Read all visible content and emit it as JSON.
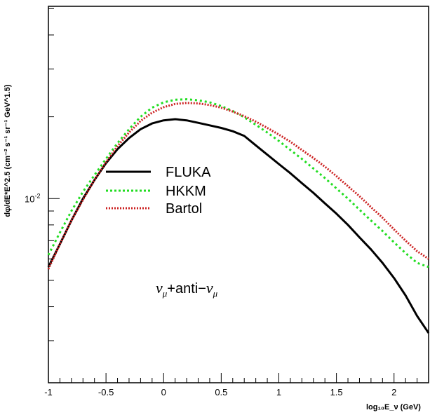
{
  "chart_data": {
    "type": "line",
    "xlabel": "log₁₀E_ν (GeV)",
    "ylabel": "dφ/dE*E^2.5 (cm⁻² s⁻¹ sr⁻¹ GeV^1.5)",
    "xlim": [
      -1,
      2.3
    ],
    "ylim": [
      0.0021,
      0.051
    ],
    "yscale": "log",
    "x_ticks": [
      -1,
      -0.5,
      0,
      0.5,
      1,
      1.5,
      2
    ],
    "x_tick_labels": [
      "-1",
      "-0.5",
      "0",
      "0.5",
      "1",
      "1.5",
      "2"
    ],
    "y_tick_labels": [
      {
        "value": 0.01,
        "label": "10",
        "exponent": "-2"
      }
    ],
    "legend_position": "center-left",
    "annotation": {
      "nu": "ν",
      "mu": "μ",
      "middle": "+anti−"
    },
    "series": [
      {
        "name": "FLUKA",
        "color": "#000000",
        "style": "solid",
        "x": [
          -1.0,
          -0.9,
          -0.8,
          -0.7,
          -0.6,
          -0.5,
          -0.4,
          -0.3,
          -0.2,
          -0.1,
          0.0,
          0.1,
          0.2,
          0.3,
          0.4,
          0.5,
          0.6,
          0.7,
          0.8,
          0.9,
          1.0,
          1.1,
          1.2,
          1.3,
          1.4,
          1.5,
          1.6,
          1.7,
          1.8,
          1.9,
          2.0,
          2.1,
          2.2,
          2.3
        ],
        "values": [
          0.0056,
          0.0068,
          0.0083,
          0.01,
          0.0117,
          0.0135,
          0.0152,
          0.0167,
          0.018,
          0.0189,
          0.0194,
          0.0196,
          0.0194,
          0.019,
          0.0186,
          0.0182,
          0.0177,
          0.017,
          0.0157,
          0.0145,
          0.0134,
          0.0124,
          0.0114,
          0.0105,
          0.0096,
          0.0088,
          0.008,
          0.0072,
          0.0065,
          0.0058,
          0.0051,
          0.0044,
          0.0037,
          0.0032
        ]
      },
      {
        "name": "HKKM",
        "color": "#22dd22",
        "style": "dotted",
        "x": [
          -1.0,
          -0.9,
          -0.8,
          -0.7,
          -0.6,
          -0.5,
          -0.4,
          -0.3,
          -0.2,
          -0.1,
          0.0,
          0.1,
          0.2,
          0.3,
          0.4,
          0.5,
          0.6,
          0.7,
          0.8,
          0.9,
          1.0,
          1.1,
          1.2,
          1.3,
          1.4,
          1.5,
          1.6,
          1.7,
          1.8,
          1.9,
          2.0,
          2.1,
          2.2,
          2.3
        ],
        "values": [
          0.0062,
          0.0075,
          0.009,
          0.0106,
          0.0122,
          0.014,
          0.016,
          0.018,
          0.02,
          0.0216,
          0.0226,
          0.0231,
          0.0232,
          0.023,
          0.0226,
          0.0219,
          0.021,
          0.0199,
          0.0187,
          0.0175,
          0.0163,
          0.0151,
          0.014,
          0.0129,
          0.0119,
          0.0109,
          0.01,
          0.0091,
          0.0083,
          0.0076,
          0.0069,
          0.0063,
          0.0058,
          0.0056
        ]
      },
      {
        "name": "Bartol",
        "color": "#cc2222",
        "style": "dotted",
        "x": [
          -1.0,
          -0.9,
          -0.8,
          -0.7,
          -0.6,
          -0.5,
          -0.4,
          -0.3,
          -0.2,
          -0.1,
          0.0,
          0.1,
          0.2,
          0.3,
          0.4,
          0.5,
          0.6,
          0.7,
          0.8,
          0.9,
          1.0,
          1.1,
          1.2,
          1.3,
          1.4,
          1.5,
          1.6,
          1.7,
          1.8,
          1.9,
          2.0,
          2.1,
          2.2,
          2.3
        ],
        "values": [
          0.0055,
          0.0068,
          0.0083,
          0.0099,
          0.0117,
          0.0136,
          0.0156,
          0.0175,
          0.0193,
          0.0207,
          0.0217,
          0.0223,
          0.0225,
          0.0224,
          0.0221,
          0.0216,
          0.0209,
          0.0201,
          0.0192,
          0.0182,
          0.0172,
          0.0162,
          0.0151,
          0.0141,
          0.0131,
          0.0121,
          0.0111,
          0.0102,
          0.0093,
          0.0085,
          0.0077,
          0.007,
          0.0064,
          0.006
        ]
      }
    ]
  }
}
